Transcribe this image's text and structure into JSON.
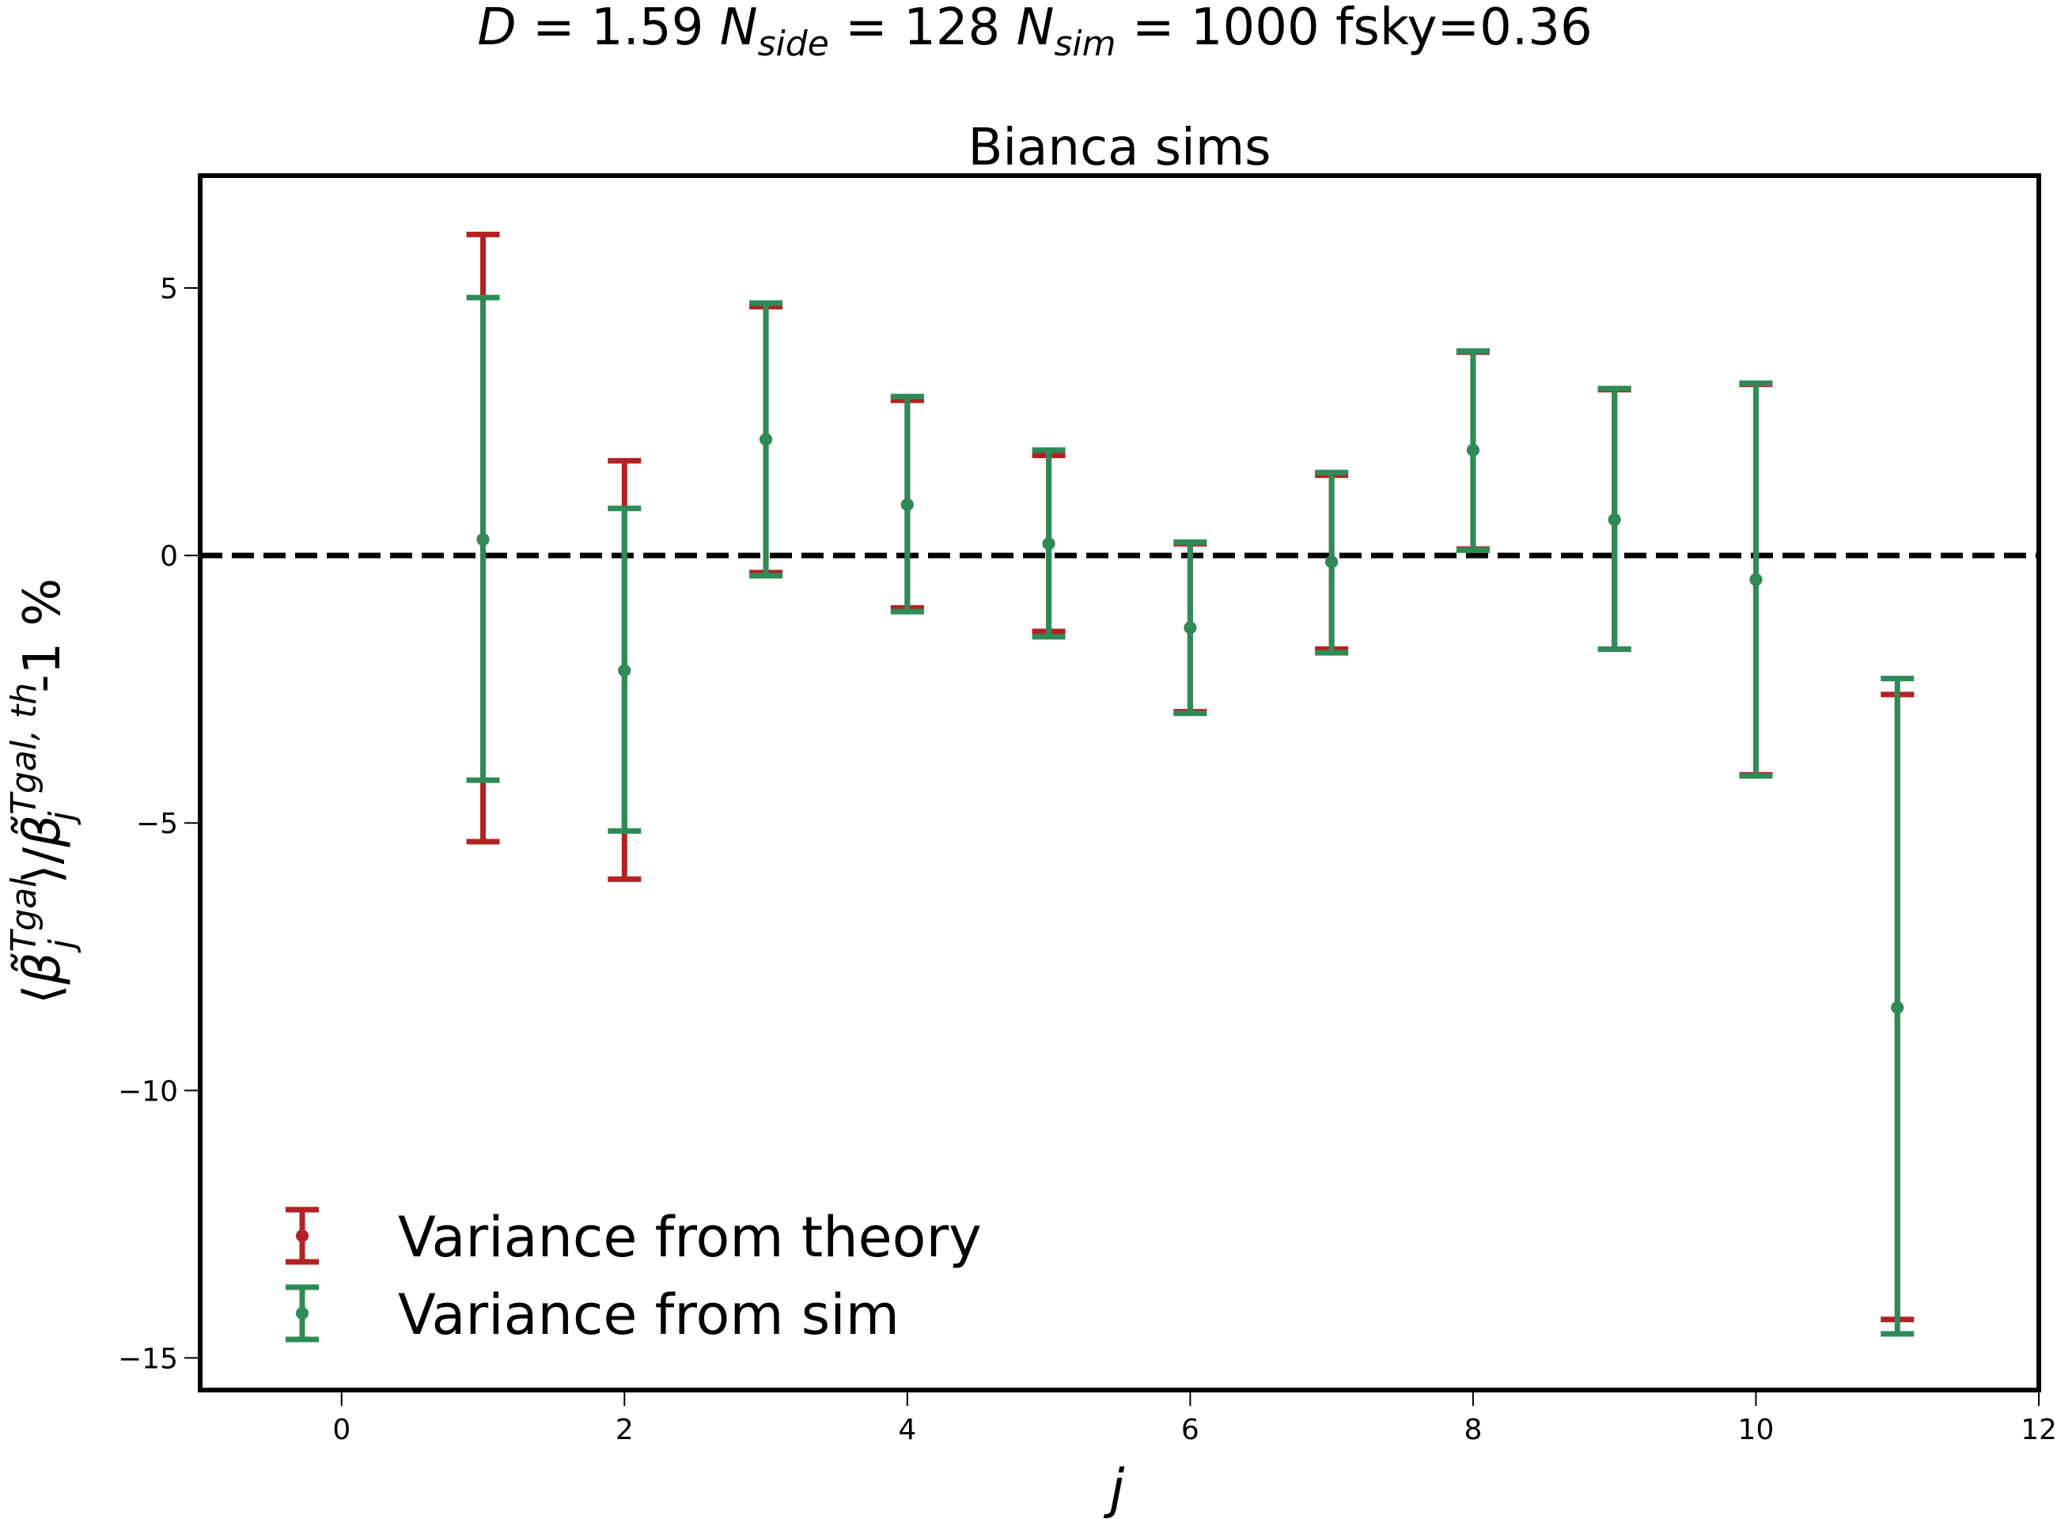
{
  "chart_data": {
    "type": "errorbar",
    "suptitle": "D = 1.59 N_side = 128 N_sim = 1000 fsky=0.36",
    "title": "Bianca sims",
    "xlabel": "j",
    "ylabel": "⟨β̃_j^Tgal⟩/β̃_j^Tgal,th-1 %",
    "xlim": [
      -1,
      12
    ],
    "ylim": [
      -15.6,
      7.1
    ],
    "xticks": [
      0,
      2,
      4,
      6,
      8,
      10,
      12
    ],
    "yticks": [
      -15,
      -10,
      -5,
      0,
      5
    ],
    "ytick_labels": [
      "−15",
      "−10",
      "−5",
      "0",
      "5"
    ],
    "reference_line": {
      "y": 0,
      "style": "dashed",
      "color": "#000000"
    },
    "legend_position": "lower-left",
    "series": [
      {
        "name": "Variance from theory",
        "color": "#b22222",
        "points": [
          {
            "x": 1,
            "y": 0.3,
            "low": -5.35,
            "high": 6.0
          },
          {
            "x": 2,
            "y": -2.15,
            "low": -6.05,
            "high": 1.77
          },
          {
            "x": 3,
            "y": 2.17,
            "low": -0.32,
            "high": 4.65
          },
          {
            "x": 4,
            "y": 0.95,
            "low": -0.98,
            "high": 2.9
          },
          {
            "x": 5,
            "y": 0.22,
            "low": -1.42,
            "high": 1.87
          },
          {
            "x": 6,
            "y": -1.35,
            "low": -2.92,
            "high": 0.22
          },
          {
            "x": 7,
            "y": -0.12,
            "low": -1.75,
            "high": 1.5
          },
          {
            "x": 8,
            "y": 1.97,
            "low": 0.12,
            "high": 3.8
          },
          {
            "x": 9,
            "y": 0.67,
            "low": -1.75,
            "high": 3.1
          },
          {
            "x": 10,
            "y": -0.45,
            "low": -4.1,
            "high": 3.2
          },
          {
            "x": 11,
            "y": -8.45,
            "low": -14.28,
            "high": -2.6
          }
        ]
      },
      {
        "name": "Variance from sim",
        "color": "#2e8b57",
        "points": [
          {
            "x": 1,
            "y": 0.3,
            "low": -4.2,
            "high": 4.82
          },
          {
            "x": 2,
            "y": -2.15,
            "low": -5.15,
            "high": 0.88
          },
          {
            "x": 3,
            "y": 2.17,
            "low": -0.38,
            "high": 4.72
          },
          {
            "x": 4,
            "y": 0.95,
            "low": -1.05,
            "high": 2.97
          },
          {
            "x": 5,
            "y": 0.22,
            "low": -1.52,
            "high": 1.97
          },
          {
            "x": 6,
            "y": -1.35,
            "low": -2.95,
            "high": 0.25
          },
          {
            "x": 7,
            "y": -0.12,
            "low": -1.82,
            "high": 1.55
          },
          {
            "x": 8,
            "y": 1.97,
            "low": 0.1,
            "high": 3.82
          },
          {
            "x": 9,
            "y": 0.67,
            "low": -1.75,
            "high": 3.12
          },
          {
            "x": 10,
            "y": -0.45,
            "low": -4.12,
            "high": 3.22
          },
          {
            "x": 11,
            "y": -8.45,
            "low": -14.55,
            "high": -2.3
          }
        ]
      }
    ]
  }
}
